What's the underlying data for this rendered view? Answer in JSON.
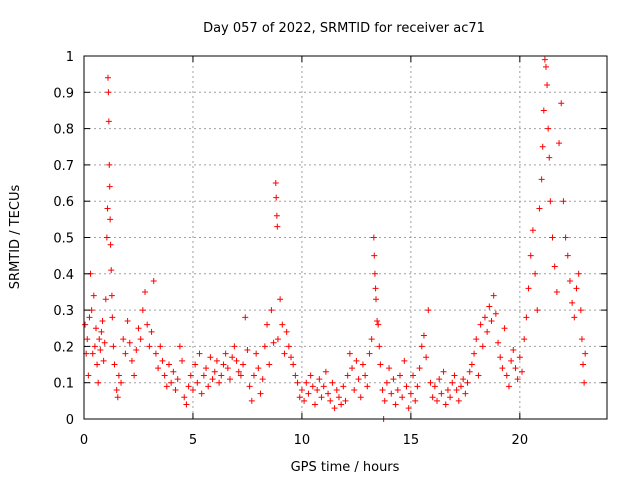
{
  "chart_data": {
    "type": "scatter",
    "title": "Day 057 of 2022, SRMTID for receiver ac71",
    "xlabel": "GPS time / hours",
    "ylabel": "SRMTID / TECUs",
    "xlim": [
      0,
      24
    ],
    "ylim": [
      0,
      1
    ],
    "xticks": [
      0,
      5,
      10,
      15,
      20
    ],
    "yticks": [
      0,
      0.1,
      0.2,
      0.3,
      0.4,
      0.5,
      0.6,
      0.7,
      0.8,
      0.9,
      1
    ],
    "xtick_labels": [
      "0",
      "5",
      "10",
      "15",
      "20"
    ],
    "ytick_labels": [
      "0",
      "0.1",
      "0.2",
      "0.3",
      "0.4",
      "0.5",
      "0.6",
      "0.7",
      "0.8",
      "0.9",
      "1"
    ],
    "grid": true,
    "marker": "+",
    "marker_color": "#ff0000",
    "series": [
      {
        "name": "SRMTID",
        "points": [
          [
            0.05,
            0.26
          ],
          [
            0.1,
            0.18
          ],
          [
            0.15,
            0.22
          ],
          [
            0.2,
            0.12
          ],
          [
            0.25,
            0.28
          ],
          [
            0.3,
            0.4
          ],
          [
            0.35,
            0.3
          ],
          [
            0.4,
            0.18
          ],
          [
            0.45,
            0.34
          ],
          [
            0.5,
            0.2
          ],
          [
            0.55,
            0.25
          ],
          [
            0.6,
            0.15
          ],
          [
            0.65,
            0.1
          ],
          [
            0.7,
            0.22
          ],
          [
            0.75,
            0.19
          ],
          [
            0.8,
            0.24
          ],
          [
            0.85,
            0.27
          ],
          [
            0.9,
            0.16
          ],
          [
            0.95,
            0.21
          ],
          [
            1.0,
            0.33
          ],
          [
            1.05,
            0.5
          ],
          [
            1.08,
            0.58
          ],
          [
            1.1,
            0.94
          ],
          [
            1.12,
            0.9
          ],
          [
            1.14,
            0.82
          ],
          [
            1.16,
            0.7
          ],
          [
            1.18,
            0.64
          ],
          [
            1.2,
            0.55
          ],
          [
            1.22,
            0.48
          ],
          [
            1.25,
            0.41
          ],
          [
            1.28,
            0.34
          ],
          [
            1.3,
            0.28
          ],
          [
            1.35,
            0.2
          ],
          [
            1.4,
            0.15
          ],
          [
            1.5,
            0.08
          ],
          [
            1.55,
            0.06
          ],
          [
            1.6,
            0.12
          ],
          [
            1.7,
            0.1
          ],
          [
            1.8,
            0.22
          ],
          [
            1.9,
            0.18
          ],
          [
            2.0,
            0.27
          ],
          [
            2.1,
            0.21
          ],
          [
            2.2,
            0.16
          ],
          [
            2.3,
            0.12
          ],
          [
            2.4,
            0.19
          ],
          [
            2.5,
            0.25
          ],
          [
            2.6,
            0.22
          ],
          [
            2.7,
            0.3
          ],
          [
            2.8,
            0.35
          ],
          [
            2.9,
            0.26
          ],
          [
            3.0,
            0.2
          ],
          [
            3.1,
            0.24
          ],
          [
            3.2,
            0.38
          ],
          [
            3.3,
            0.18
          ],
          [
            3.4,
            0.14
          ],
          [
            3.5,
            0.2
          ],
          [
            3.6,
            0.16
          ],
          [
            3.7,
            0.12
          ],
          [
            3.8,
            0.09
          ],
          [
            3.9,
            0.15
          ],
          [
            4.0,
            0.1
          ],
          [
            4.1,
            0.13
          ],
          [
            4.2,
            0.08
          ],
          [
            4.3,
            0.11
          ],
          [
            4.4,
            0.2
          ],
          [
            4.5,
            0.16
          ],
          [
            4.6,
            0.06
          ],
          [
            4.7,
            0.04
          ],
          [
            4.8,
            0.09
          ],
          [
            4.9,
            0.12
          ],
          [
            5.0,
            0.08
          ],
          [
            5.1,
            0.15
          ],
          [
            5.2,
            0.1
          ],
          [
            5.3,
            0.18
          ],
          [
            5.4,
            0.07
          ],
          [
            5.5,
            0.12
          ],
          [
            5.6,
            0.14
          ],
          [
            5.7,
            0.09
          ],
          [
            5.8,
            0.17
          ],
          [
            5.9,
            0.11
          ],
          [
            6.0,
            0.13
          ],
          [
            6.1,
            0.16
          ],
          [
            6.2,
            0.1
          ],
          [
            6.3,
            0.12
          ],
          [
            6.4,
            0.15
          ],
          [
            6.5,
            0.18
          ],
          [
            6.6,
            0.14
          ],
          [
            6.7,
            0.11
          ],
          [
            6.8,
            0.17
          ],
          [
            6.9,
            0.2
          ],
          [
            7.0,
            0.16
          ],
          [
            7.1,
            0.13
          ],
          [
            7.2,
            0.12
          ],
          [
            7.3,
            0.15
          ],
          [
            7.4,
            0.28
          ],
          [
            7.5,
            0.19
          ],
          [
            7.6,
            0.09
          ],
          [
            7.7,
            0.05
          ],
          [
            7.8,
            0.12
          ],
          [
            7.9,
            0.18
          ],
          [
            8.0,
            0.14
          ],
          [
            8.1,
            0.07
          ],
          [
            8.2,
            0.11
          ],
          [
            8.3,
            0.2
          ],
          [
            8.4,
            0.26
          ],
          [
            8.5,
            0.15
          ],
          [
            8.6,
            0.3
          ],
          [
            8.7,
            0.21
          ],
          [
            8.8,
            0.65
          ],
          [
            8.82,
            0.61
          ],
          [
            8.85,
            0.56
          ],
          [
            8.87,
            0.53
          ],
          [
            8.9,
            0.22
          ],
          [
            9.0,
            0.33
          ],
          [
            9.1,
            0.26
          ],
          [
            9.2,
            0.18
          ],
          [
            9.3,
            0.24
          ],
          [
            9.4,
            0.2
          ],
          [
            9.5,
            0.17
          ],
          [
            9.6,
            0.15
          ],
          [
            9.7,
            0.12
          ],
          [
            9.8,
            0.1
          ],
          [
            9.9,
            0.06
          ],
          [
            10.0,
            0.08
          ],
          [
            10.1,
            0.05
          ],
          [
            10.2,
            0.1
          ],
          [
            10.3,
            0.07
          ],
          [
            10.4,
            0.12
          ],
          [
            10.5,
            0.09
          ],
          [
            10.6,
            0.04
          ],
          [
            10.7,
            0.08
          ],
          [
            10.8,
            0.11
          ],
          [
            10.9,
            0.06
          ],
          [
            11.0,
            0.09
          ],
          [
            11.1,
            0.13
          ],
          [
            11.2,
            0.07
          ],
          [
            11.3,
            0.05
          ],
          [
            11.4,
            0.1
          ],
          [
            11.5,
            0.03
          ],
          [
            11.6,
            0.08
          ],
          [
            11.7,
            0.06
          ],
          [
            11.8,
            0.04
          ],
          [
            11.9,
            0.09
          ],
          [
            12.0,
            0.05
          ],
          [
            12.1,
            0.12
          ],
          [
            12.2,
            0.18
          ],
          [
            12.3,
            0.14
          ],
          [
            12.4,
            0.08
          ],
          [
            12.5,
            0.16
          ],
          [
            12.6,
            0.11
          ],
          [
            12.7,
            0.06
          ],
          [
            12.8,
            0.15
          ],
          [
            12.9,
            0.12
          ],
          [
            13.0,
            0.09
          ],
          [
            13.1,
            0.18
          ],
          [
            13.2,
            0.22
          ],
          [
            13.3,
            0.5
          ],
          [
            13.32,
            0.45
          ],
          [
            13.35,
            0.4
          ],
          [
            13.38,
            0.36
          ],
          [
            13.4,
            0.33
          ],
          [
            13.45,
            0.27
          ],
          [
            13.5,
            0.26
          ],
          [
            13.55,
            0.2
          ],
          [
            13.6,
            0.15
          ],
          [
            13.7,
            0.08
          ],
          [
            13.75,
            0.0
          ],
          [
            13.8,
            0.05
          ],
          [
            13.9,
            0.1
          ],
          [
            14.0,
            0.14
          ],
          [
            14.1,
            0.07
          ],
          [
            14.2,
            0.11
          ],
          [
            14.3,
            0.04
          ],
          [
            14.4,
            0.08
          ],
          [
            14.5,
            0.12
          ],
          [
            14.6,
            0.06
          ],
          [
            14.7,
            0.16
          ],
          [
            14.8,
            0.09
          ],
          [
            14.9,
            0.03
          ],
          [
            15.0,
            0.07
          ],
          [
            15.1,
            0.12
          ],
          [
            15.2,
            0.05
          ],
          [
            15.3,
            0.09
          ],
          [
            15.4,
            0.14
          ],
          [
            15.5,
            0.2
          ],
          [
            15.6,
            0.23
          ],
          [
            15.7,
            0.17
          ],
          [
            15.8,
            0.3
          ],
          [
            15.9,
            0.1
          ],
          [
            16.0,
            0.06
          ],
          [
            16.1,
            0.09
          ],
          [
            16.2,
            0.05
          ],
          [
            16.3,
            0.11
          ],
          [
            16.4,
            0.07
          ],
          [
            16.5,
            0.13
          ],
          [
            16.6,
            0.04
          ],
          [
            16.7,
            0.08
          ],
          [
            16.8,
            0.06
          ],
          [
            16.9,
            0.1
          ],
          [
            17.0,
            0.12
          ],
          [
            17.1,
            0.08
          ],
          [
            17.2,
            0.05
          ],
          [
            17.3,
            0.09
          ],
          [
            17.4,
            0.11
          ],
          [
            17.5,
            0.07
          ],
          [
            17.6,
            0.1
          ],
          [
            17.7,
            0.13
          ],
          [
            17.8,
            0.15
          ],
          [
            17.9,
            0.18
          ],
          [
            18.0,
            0.22
          ],
          [
            18.1,
            0.12
          ],
          [
            18.2,
            0.26
          ],
          [
            18.3,
            0.2
          ],
          [
            18.4,
            0.28
          ],
          [
            18.5,
            0.24
          ],
          [
            18.6,
            0.31
          ],
          [
            18.7,
            0.27
          ],
          [
            18.8,
            0.34
          ],
          [
            18.9,
            0.29
          ],
          [
            19.0,
            0.21
          ],
          [
            19.1,
            0.17
          ],
          [
            19.2,
            0.14
          ],
          [
            19.3,
            0.25
          ],
          [
            19.4,
            0.12
          ],
          [
            19.5,
            0.09
          ],
          [
            19.6,
            0.16
          ],
          [
            19.7,
            0.19
          ],
          [
            19.8,
            0.14
          ],
          [
            19.9,
            0.11
          ],
          [
            20.0,
            0.17
          ],
          [
            20.1,
            0.13
          ],
          [
            20.2,
            0.22
          ],
          [
            20.3,
            0.28
          ],
          [
            20.4,
            0.36
          ],
          [
            20.5,
            0.45
          ],
          [
            20.6,
            0.52
          ],
          [
            20.7,
            0.4
          ],
          [
            20.8,
            0.3
          ],
          [
            20.9,
            0.58
          ],
          [
            21.0,
            0.66
          ],
          [
            21.05,
            0.75
          ],
          [
            21.1,
            0.85
          ],
          [
            21.15,
            0.99
          ],
          [
            21.2,
            0.97
          ],
          [
            21.25,
            0.92
          ],
          [
            21.3,
            0.8
          ],
          [
            21.35,
            0.72
          ],
          [
            21.4,
            0.6
          ],
          [
            21.5,
            0.5
          ],
          [
            21.6,
            0.42
          ],
          [
            21.7,
            0.35
          ],
          [
            21.8,
            0.76
          ],
          [
            21.9,
            0.87
          ],
          [
            22.0,
            0.6
          ],
          [
            22.1,
            0.5
          ],
          [
            22.2,
            0.45
          ],
          [
            22.3,
            0.38
          ],
          [
            22.4,
            0.32
          ],
          [
            22.5,
            0.28
          ],
          [
            22.6,
            0.36
          ],
          [
            22.7,
            0.4
          ],
          [
            22.8,
            0.3
          ],
          [
            22.85,
            0.22
          ],
          [
            22.9,
            0.15
          ],
          [
            22.95,
            0.1
          ],
          [
            23.0,
            0.18
          ]
        ]
      }
    ]
  }
}
